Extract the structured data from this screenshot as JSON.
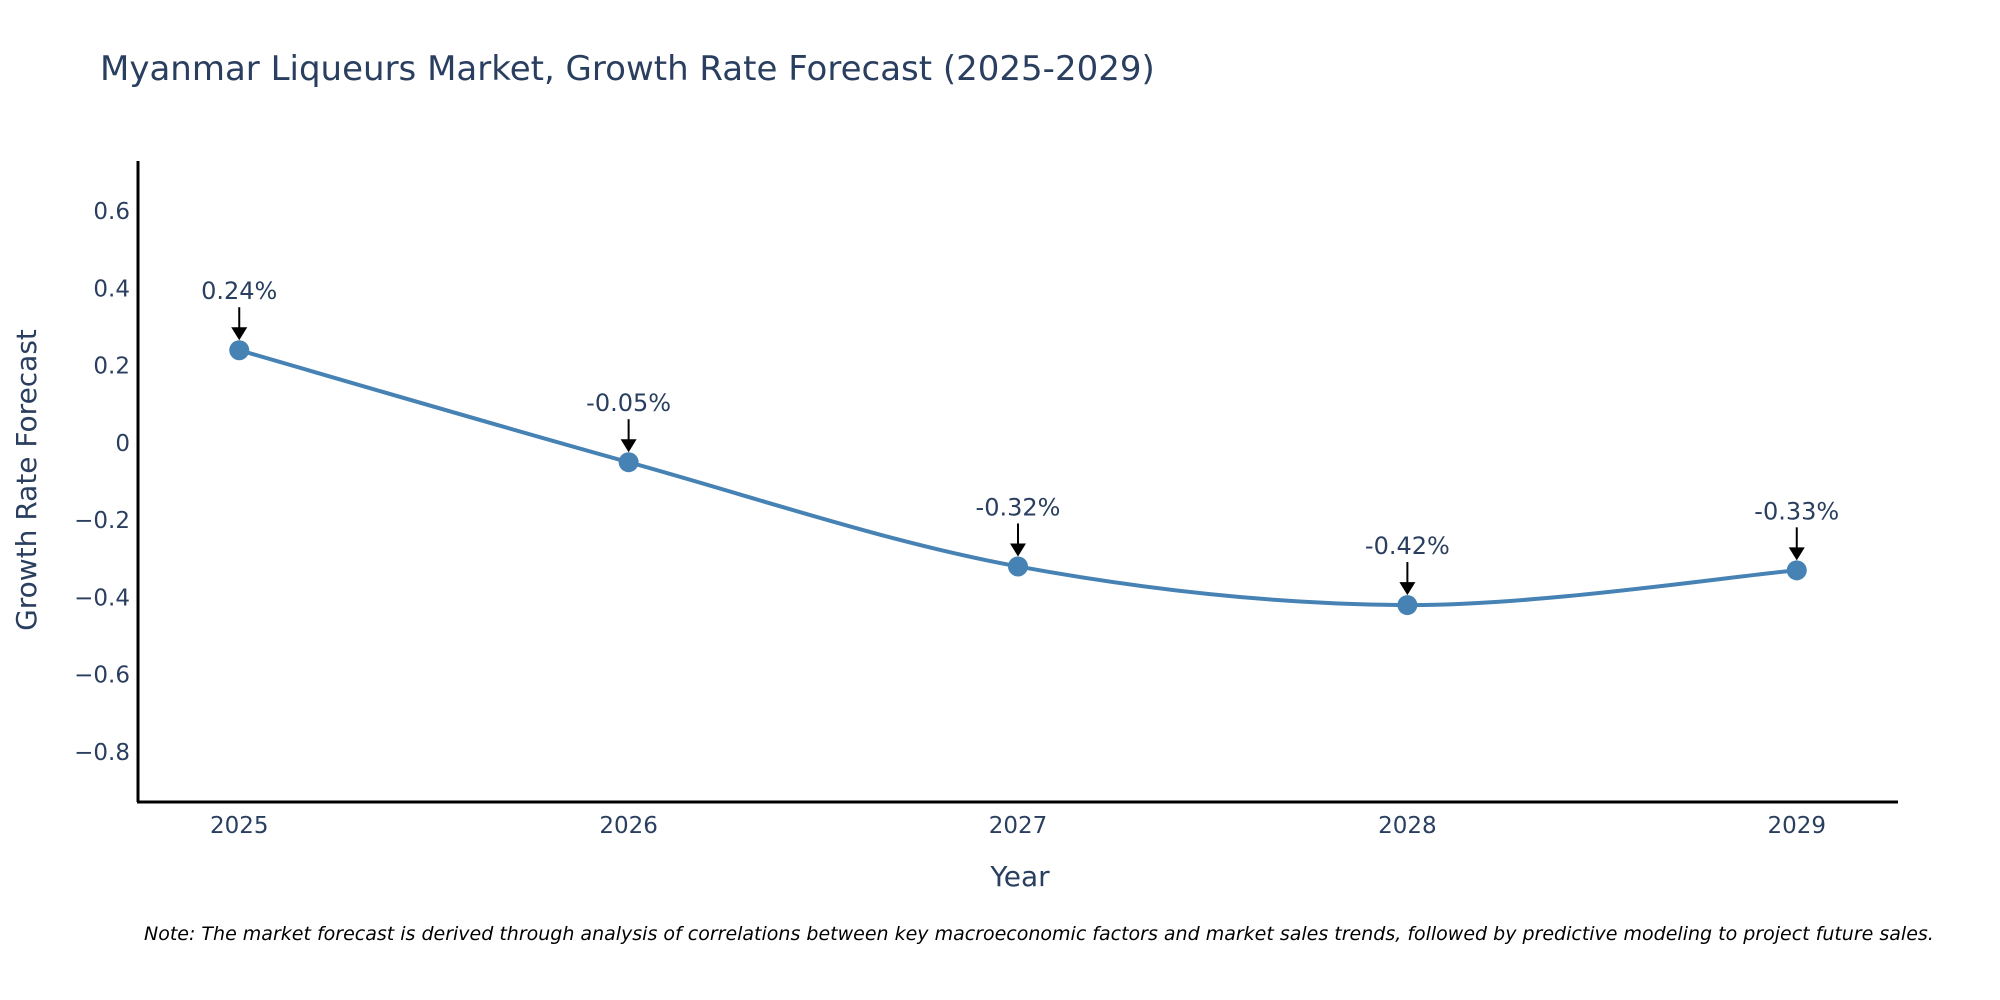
{
  "chart_data": {
    "type": "line",
    "title": "Myanmar Liqueurs Market, Growth Rate Forecast (2025-2029)",
    "xlabel": "Year",
    "ylabel": "Growth Rate Forecast",
    "categories": [
      "2025",
      "2026",
      "2027",
      "2028",
      "2029"
    ],
    "x": [
      2025,
      2026,
      2027,
      2028,
      2029
    ],
    "values": [
      0.24,
      -0.05,
      -0.32,
      -0.42,
      -0.33
    ],
    "data_labels": [
      "0.24%",
      "-0.05%",
      "-0.32%",
      "-0.42%",
      "-0.33%"
    ],
    "ylim": [
      -0.93,
      0.73
    ],
    "xlim": [
      2024.74,
      2029.26
    ],
    "y_ticks": [
      0.6,
      0.4,
      0.2,
      0,
      -0.2,
      -0.4,
      -0.6,
      -0.8
    ],
    "y_tick_labels": [
      "0.6",
      "0.4",
      "0.2",
      "0",
      "−0.2",
      "−0.4",
      "−0.6",
      "−0.8"
    ],
    "line_shape": "spline",
    "grid": false,
    "legend": "none",
    "colors": {
      "line": "#4682b4",
      "marker": "#4682b4",
      "arrow": "#000000",
      "axis": "#000000",
      "text": "#2a3f5f"
    },
    "note": "Note: The market forecast is derived through analysis of correlations between key macroeconomic factors and market sales trends, followed by predictive modeling to project future sales."
  }
}
